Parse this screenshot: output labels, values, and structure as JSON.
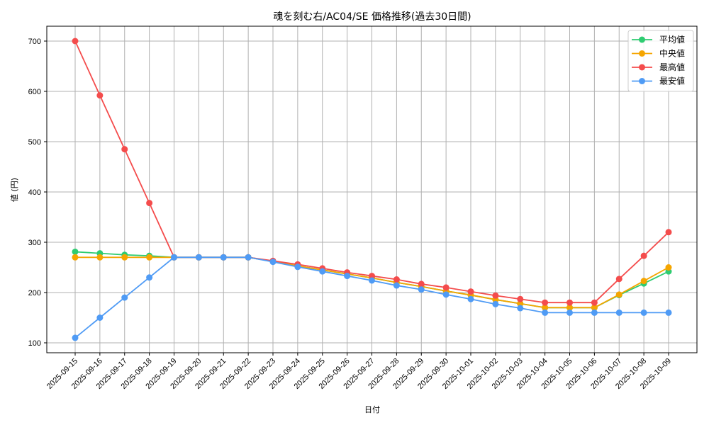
{
  "chart_data": {
    "type": "line",
    "title": "魂を刻む右/AC04/SE 価格推移(過去30日間)",
    "xlabel": "日付",
    "ylabel": "値 (円)",
    "ylim": [
      80,
      730
    ],
    "yticks": [
      100,
      200,
      300,
      400,
      500,
      600,
      700
    ],
    "grid": true,
    "legend_position": "upper right",
    "x": [
      "2025-09-15",
      "2025-09-16",
      "2025-09-17",
      "2025-09-18",
      "2025-09-19",
      "2025-09-20",
      "2025-09-21",
      "2025-09-22",
      "2025-09-23",
      "2025-09-24",
      "2025-09-25",
      "2025-09-26",
      "2025-09-27",
      "2025-09-28",
      "2025-09-29",
      "2025-09-30",
      "2025-10-01",
      "2025-10-02",
      "2025-10-03",
      "2025-10-04",
      "2025-10-05",
      "2025-10-06",
      "2025-10-07",
      "2025-10-08",
      "2025-10-09"
    ],
    "series": [
      {
        "name": "平均値",
        "color": "#2ecc71",
        "values": [
          281,
          278,
          275,
          273,
          270,
          270,
          270,
          270,
          262,
          253,
          245,
          237,
          229,
          220,
          212,
          203,
          195,
          186,
          178,
          170,
          170,
          170,
          195,
          218,
          242
        ]
      },
      {
        "name": "中央値",
        "color": "#f5a500",
        "values": [
          270,
          270,
          270,
          270,
          270,
          270,
          270,
          270,
          262,
          253,
          245,
          237,
          229,
          220,
          212,
          203,
          195,
          186,
          178,
          170,
          170,
          170,
          196,
          223,
          250
        ]
      },
      {
        "name": "最高値",
        "color": "#f44c4c",
        "values": [
          700,
          592,
          485,
          378,
          270,
          270,
          270,
          270,
          263,
          256,
          248,
          240,
          233,
          226,
          217,
          210,
          202,
          194,
          187,
          180,
          180,
          180,
          227,
          273,
          320
        ]
      },
      {
        "name": "最安値",
        "color": "#4f9bf5",
        "values": [
          110,
          150,
          190,
          230,
          270,
          270,
          270,
          270,
          261,
          251,
          242,
          233,
          224,
          214,
          206,
          196,
          187,
          177,
          169,
          160,
          160,
          160,
          160,
          160,
          160
        ]
      }
    ]
  }
}
